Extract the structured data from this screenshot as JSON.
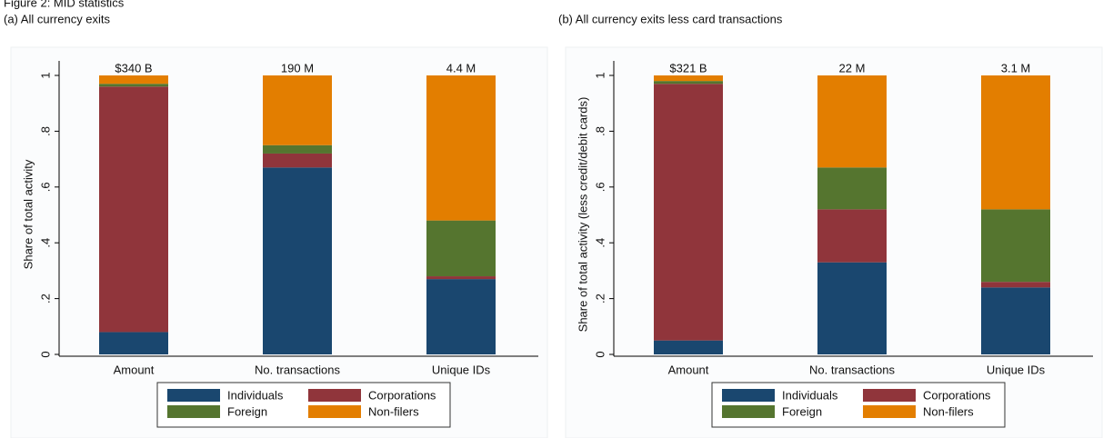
{
  "figure_title": "Figure 2: MID statistics",
  "chart_data": [
    {
      "type": "stacked_bar",
      "subtitle": "(a) All currency exits",
      "ylabel": "Share of total activity",
      "categories": [
        "Amount",
        "No. transactions",
        "Unique IDs"
      ],
      "annotations": [
        "$340 B",
        "190 M",
        "4.4 M"
      ],
      "series": [
        {
          "name": "Individuals",
          "color": "#1a476f",
          "values": [
            0.08,
            0.67,
            0.27
          ]
        },
        {
          "name": "Corporations",
          "color": "#90353b",
          "values": [
            0.88,
            0.05,
            0.01
          ]
        },
        {
          "name": "Foreign",
          "color": "#55752f",
          "values": [
            0.01,
            0.03,
            0.2
          ]
        },
        {
          "name": "Non-filers",
          "color": "#e37e00",
          "values": [
            0.03,
            0.25,
            0.52
          ]
        }
      ],
      "ylim": [
        0,
        1
      ],
      "yticks": [
        0,
        {
          "value": 0.2,
          "label": ".2"
        },
        {
          "value": 0.4,
          "label": ".4"
        },
        {
          "value": 0.6,
          "label": ".6"
        },
        {
          "value": 0.8,
          "label": ".8"
        },
        1
      ],
      "legend": "bottom"
    },
    {
      "type": "stacked_bar",
      "subtitle": "(b) All currency exits less card transactions",
      "ylabel": "Share of total activity (less credit/debit cards)",
      "categories": [
        "Amount",
        "No. transactions",
        "Unique IDs"
      ],
      "annotations": [
        "$321 B",
        "22 M",
        "3.1 M"
      ],
      "series": [
        {
          "name": "Individuals",
          "color": "#1a476f",
          "values": [
            0.05,
            0.33,
            0.24
          ]
        },
        {
          "name": "Corporations",
          "color": "#90353b",
          "values": [
            0.92,
            0.19,
            0.02
          ]
        },
        {
          "name": "Foreign",
          "color": "#55752f",
          "values": [
            0.01,
            0.15,
            0.26
          ]
        },
        {
          "name": "Non-filers",
          "color": "#e37e00",
          "values": [
            0.02,
            0.33,
            0.48
          ]
        }
      ],
      "ylim": [
        0,
        1
      ],
      "yticks": [
        0,
        {
          "value": 0.2,
          "label": ".2"
        },
        {
          "value": 0.4,
          "label": ".4"
        },
        {
          "value": 0.6,
          "label": ".6"
        },
        {
          "value": 0.8,
          "label": ".8"
        },
        1
      ],
      "legend": "bottom"
    }
  ]
}
